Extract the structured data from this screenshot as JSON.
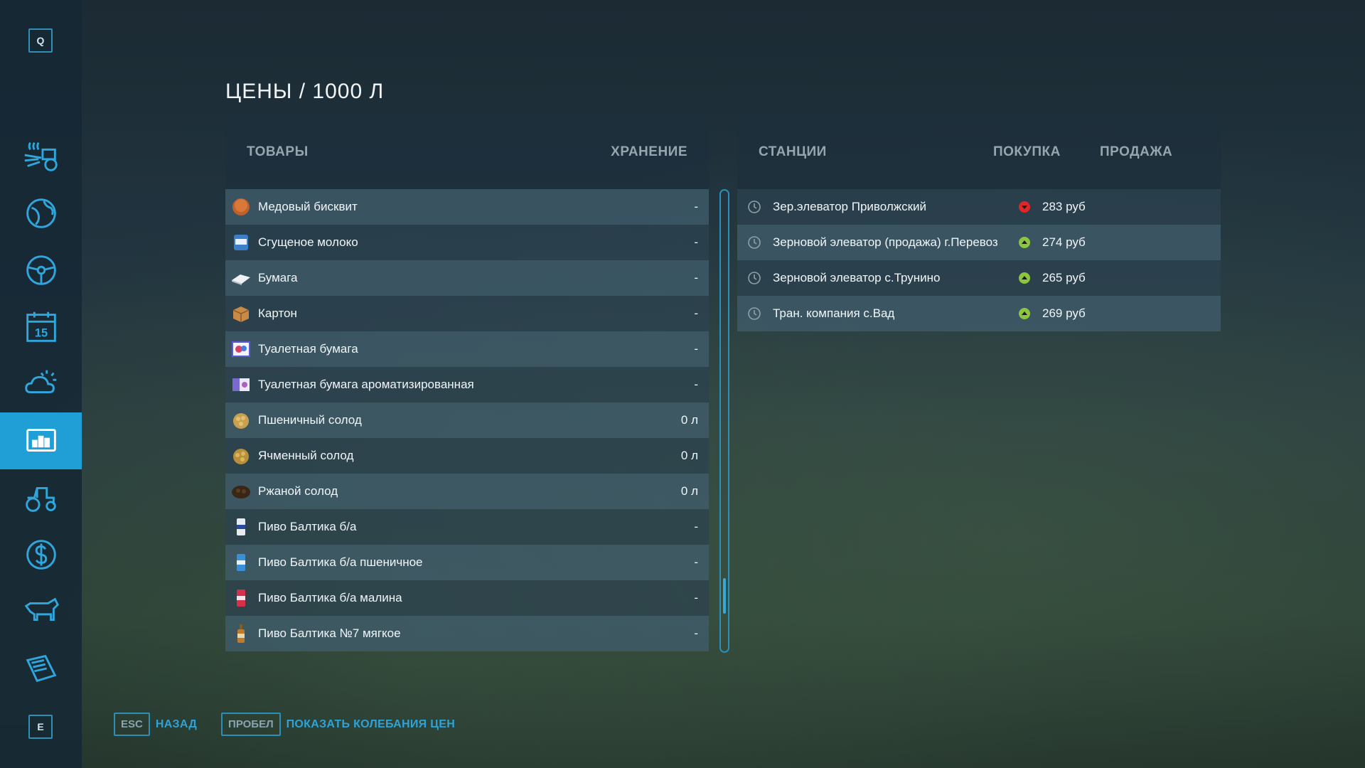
{
  "sidebar": {
    "top_key": "Q",
    "bottom_key": "E",
    "items": [
      {
        "icon": "production-icon"
      },
      {
        "icon": "map-icon"
      },
      {
        "icon": "steering-wheel-icon"
      },
      {
        "icon": "calendar-icon",
        "text": "15"
      },
      {
        "icon": "weather-icon"
      },
      {
        "icon": "prices-chart-icon",
        "active": true
      },
      {
        "icon": "tractor-icon"
      },
      {
        "icon": "finances-icon"
      },
      {
        "icon": "animals-icon"
      },
      {
        "icon": "contracts-icon"
      }
    ]
  },
  "title": "ЦЕНЫ / 1000 Л",
  "goods": {
    "header_goods": "ТОВАРЫ",
    "header_storage": "ХРАНЕНИЕ",
    "rows": [
      {
        "name": "Медовый бисквит",
        "storage": "-",
        "icon": "honey-cake-icon"
      },
      {
        "name": "Сгущеное молоко",
        "storage": "-",
        "icon": "condensed-milk-icon"
      },
      {
        "name": "Бумага",
        "storage": "-",
        "icon": "paper-icon"
      },
      {
        "name": "Картон",
        "storage": "-",
        "icon": "cardboard-icon"
      },
      {
        "name": "Туалетная бумага",
        "storage": "-",
        "icon": "toilet-paper-icon"
      },
      {
        "name": "Туалетная бумага ароматизированная",
        "storage": "-",
        "icon": "scented-toilet-paper-icon"
      },
      {
        "name": "Пшеничный солод",
        "storage": "0 л",
        "icon": "wheat-malt-icon"
      },
      {
        "name": "Ячменный солод",
        "storage": "0 л",
        "icon": "barley-malt-icon"
      },
      {
        "name": "Ржаной солод",
        "storage": "0 л",
        "icon": "rye-malt-icon"
      },
      {
        "name": "Пиво Балтика б/а",
        "storage": "-",
        "icon": "beer-can-icon"
      },
      {
        "name": "Пиво Балтика б/а пшеничное",
        "storage": "-",
        "icon": "beer-can-icon"
      },
      {
        "name": "Пиво Балтика б/а малина",
        "storage": "-",
        "icon": "beer-can-icon"
      },
      {
        "name": "Пиво Балтика №7 мягкое",
        "storage": "-",
        "icon": "beer-bottle-icon"
      }
    ]
  },
  "stations": {
    "header_station": "СТАНЦИИ",
    "header_buy": "ПОКУПКА",
    "header_sell": "ПРОДАЖА",
    "rows": [
      {
        "name": "Зер.элеватор Приволжский",
        "trend": "down",
        "price": "283 руб"
      },
      {
        "name": "Зерновой элеватор (продажа) г.Перевоз",
        "trend": "up",
        "price": "274 руб"
      },
      {
        "name": "Зерновой элеватор с.Трунино",
        "trend": "up",
        "price": "265 руб"
      },
      {
        "name": "Тран. компания с.Вад",
        "trend": "up",
        "price": "269 руб"
      }
    ]
  },
  "colors": {
    "accent": "#1f9fd6",
    "trend_up": "#8cc63f",
    "trend_down": "#e0262b"
  },
  "footer": {
    "back_key": "ESC",
    "back_label": "НАЗАД",
    "fluct_key": "ПРОБЕЛ",
    "fluct_label": "ПОКАЗАТЬ КОЛЕБАНИЯ ЦЕН"
  }
}
